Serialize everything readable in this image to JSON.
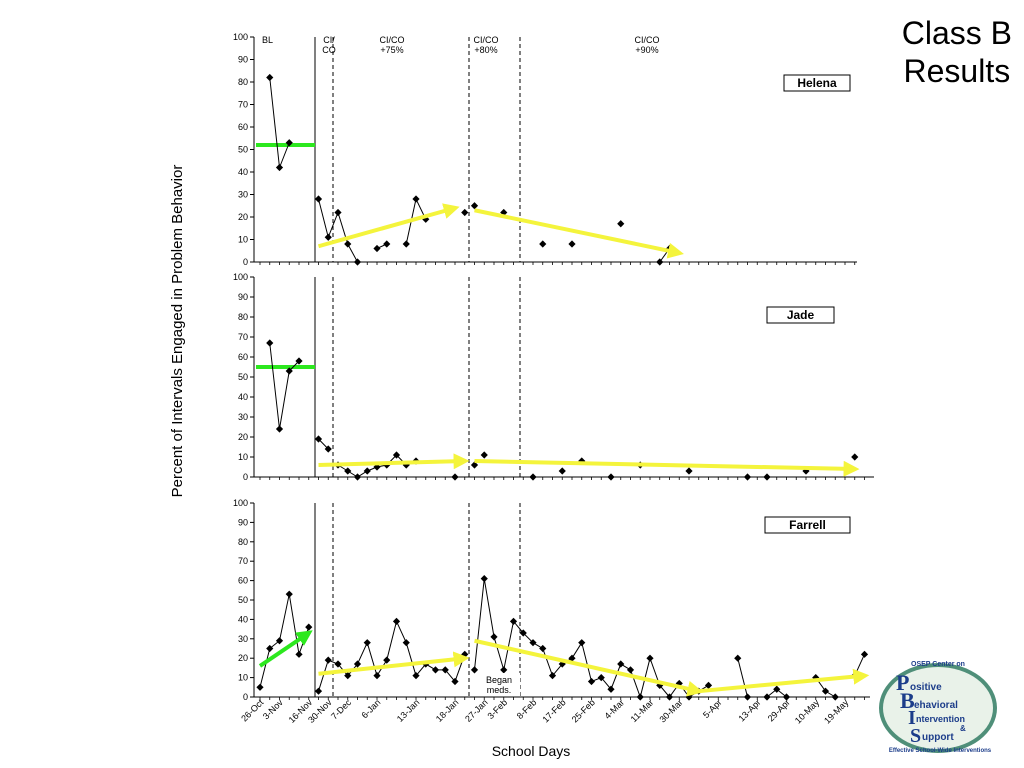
{
  "slide": {
    "title_line1": "Class B",
    "title_line2": "Results"
  },
  "chart_data": {
    "type": "line",
    "ylabel": "Percent of Intervals Engaged in Problem Behavior",
    "xlabel": "School Days",
    "ylim": [
      0,
      100
    ],
    "yticks": [
      0,
      10,
      20,
      30,
      40,
      50,
      60,
      70,
      80,
      90,
      100
    ],
    "x_tick_labels": [
      "26-Oct",
      "3-Nov",
      "16-Nov",
      "30-Nov",
      "7-Dec",
      "6-Jan",
      "13-Jan",
      "18-Jan",
      "27-Jan",
      "3-Feb",
      "8-Feb",
      "17-Feb",
      "25-Feb",
      "4-Mar",
      "11-Mar",
      "30-Mar",
      "5-Apr",
      "13-Apr",
      "29-Apr",
      "10-May",
      "19-May"
    ],
    "phase_labels": [
      {
        "line1": "BL",
        "line2": ""
      },
      {
        "line1": "CI/",
        "line2": "CO"
      },
      {
        "line1": "CI/CO",
        "line2": "+75%"
      },
      {
        "line1": "CI/CO",
        "line2": "+80%"
      },
      {
        "line1": "CI/CO",
        "line2": "+90%"
      }
    ],
    "annotation": {
      "line1": "Began",
      "line2": "meds."
    },
    "panels": [
      {
        "name": "Helena",
        "segments": [
          [
            [
              1,
              82
            ],
            [
              2,
              42
            ],
            [
              3,
              53
            ]
          ],
          [
            [
              6,
              28
            ],
            [
              7,
              11
            ],
            [
              8,
              22
            ],
            [
              9,
              8
            ],
            [
              10,
              0
            ]
          ],
          [
            [
              12,
              6
            ],
            [
              13,
              8
            ]
          ],
          [
            [
              15,
              8
            ],
            [
              16,
              28
            ],
            [
              17,
              19
            ]
          ],
          [
            [
              21,
              22
            ]
          ],
          [
            [
              22,
              25
            ]
          ],
          [
            [
              25,
              22
            ]
          ],
          [
            [
              29,
              8
            ]
          ],
          [
            [
              32,
              8
            ]
          ],
          [
            [
              37,
              17
            ]
          ],
          [
            [
              41,
              0
            ],
            [
              42,
              6
            ]
          ]
        ],
        "baseline_mean": 52,
        "trends": [
          [
            [
              6,
              7
            ],
            [
              20,
              24
            ]
          ],
          [
            [
              22,
              23
            ],
            [
              43,
              4
            ]
          ]
        ]
      },
      {
        "name": "Jade",
        "segments": [
          [
            [
              1,
              67
            ],
            [
              2,
              24
            ],
            [
              3,
              53
            ],
            [
              4,
              58
            ]
          ],
          [
            [
              6,
              19
            ],
            [
              7,
              14
            ]
          ],
          [
            [
              8,
              6
            ],
            [
              9,
              3
            ],
            [
              10,
              0
            ],
            [
              11,
              3
            ],
            [
              12,
              5
            ],
            [
              13,
              6
            ],
            [
              14,
              11
            ],
            [
              15,
              6
            ],
            [
              16,
              8
            ]
          ],
          [
            [
              20,
              0
            ]
          ],
          [
            [
              22,
              6
            ]
          ],
          [
            [
              23,
              11
            ]
          ],
          [
            [
              28,
              0
            ]
          ],
          [
            [
              31,
              3
            ]
          ],
          [
            [
              33,
              8
            ]
          ],
          [
            [
              36,
              0
            ]
          ],
          [
            [
              39,
              6
            ]
          ],
          [
            [
              44,
              3
            ]
          ],
          [
            [
              50,
              0
            ]
          ],
          [
            [
              52,
              0
            ]
          ],
          [
            [
              56,
              3
            ]
          ],
          [
            [
              61,
              10
            ]
          ]
        ],
        "baseline_mean": 55,
        "trends": [
          [
            [
              6,
              6
            ],
            [
              21,
              8
            ]
          ],
          [
            [
              22,
              8
            ],
            [
              61,
              4
            ]
          ]
        ]
      },
      {
        "name": "Farrell",
        "segments": [
          [
            [
              0,
              5
            ],
            [
              1,
              25
            ],
            [
              2,
              29
            ],
            [
              3,
              53
            ],
            [
              4,
              22
            ],
            [
              5,
              36
            ]
          ],
          [
            [
              6,
              3
            ],
            [
              7,
              19
            ],
            [
              8,
              17
            ],
            [
              9,
              11
            ],
            [
              10,
              17
            ],
            [
              11,
              28
            ],
            [
              12,
              11
            ],
            [
              13,
              19
            ],
            [
              14,
              39
            ],
            [
              15,
              28
            ],
            [
              16,
              11
            ],
            [
              17,
              17
            ],
            [
              18,
              14
            ],
            [
              19,
              14
            ],
            [
              20,
              8
            ],
            [
              21,
              22
            ]
          ],
          [
            [
              22,
              14
            ],
            [
              23,
              61
            ],
            [
              24,
              31
            ],
            [
              25,
              14
            ],
            [
              26,
              39
            ],
            [
              27,
              33
            ],
            [
              28,
              28
            ],
            [
              29,
              25
            ],
            [
              30,
              11
            ],
            [
              31,
              17
            ],
            [
              32,
              20
            ],
            [
              33,
              28
            ],
            [
              34,
              8
            ],
            [
              35,
              10
            ],
            [
              36,
              4
            ],
            [
              37,
              17
            ],
            [
              38,
              14
            ],
            [
              39,
              0
            ],
            [
              40,
              20
            ],
            [
              41,
              6
            ],
            [
              42,
              0
            ],
            [
              43,
              7
            ],
            [
              44,
              0
            ],
            [
              45,
              3
            ],
            [
              46,
              6
            ]
          ],
          [
            [
              49,
              20
            ],
            [
              50,
              0
            ]
          ],
          [
            [
              52,
              0
            ],
            [
              53,
              4
            ],
            [
              54,
              0
            ]
          ],
          [
            [
              57,
              10
            ],
            [
              58,
              3
            ],
            [
              59,
              0
            ]
          ],
          [
            [
              61,
              11
            ],
            [
              62,
              22
            ]
          ]
        ],
        "trends": [
          [
            [
              0,
              16
            ],
            [
              5,
              33
            ]
          ],
          [
            [
              6,
              12
            ],
            [
              21,
              20
            ]
          ],
          [
            [
              22,
              29
            ],
            [
              45,
              3
            ]
          ],
          [
            [
              45,
              3
            ],
            [
              62,
              11
            ]
          ]
        ]
      }
    ]
  },
  "logo": {
    "top_line": "OSEP Center on",
    "letters": [
      "P",
      "B",
      "I",
      "S"
    ],
    "words": [
      "ositive",
      "ehavioral",
      "ntervention",
      "&",
      "upport"
    ],
    "bottom_line": "Effective School-Wide Interventions"
  }
}
